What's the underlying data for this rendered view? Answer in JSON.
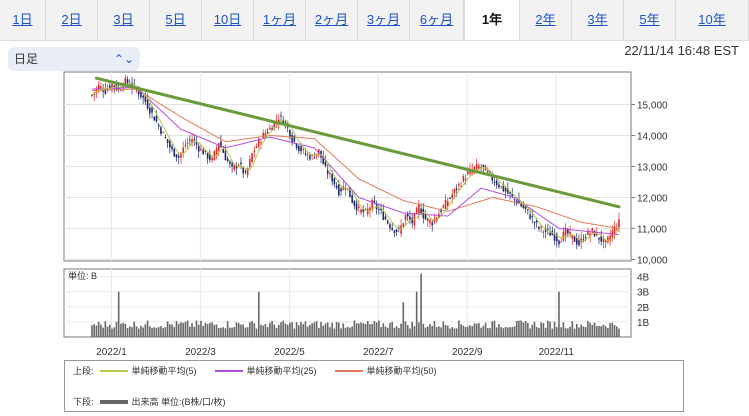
{
  "tabs": [
    "1日",
    "2日",
    "3日",
    "5日",
    "10日",
    "1ヶ月",
    "2ヶ月",
    "3ヶ月",
    "6ヶ月",
    "1年",
    "2年",
    "3年",
    "5年",
    "10年"
  ],
  "active_tab_index": 9,
  "period_select": {
    "value": "日足"
  },
  "timestamp": "22/11/14 16:48 EST",
  "legend": {
    "upper_label": "上段:",
    "lower_label": "下段:",
    "ma": [
      {
        "label": "単純移動平均(5)",
        "color": "#b5c94a"
      },
      {
        "label": "単純移動平均(25)",
        "color": "#b04cd8"
      },
      {
        "label": "単純移動平均(50)",
        "color": "#e07a5a"
      }
    ],
    "volume": {
      "label": "出来高 単位:(B株/口/枚)",
      "color": "#666666"
    }
  },
  "colors": {
    "trendline": "#6a9a3a",
    "candle_up": "#e02828",
    "candle_down": "#1a2a6a"
  },
  "chart_data": {
    "type": "candlestick",
    "price_axis": {
      "ticks": [
        "15,000",
        "14,000",
        "13,000",
        "12,000",
        "11,000",
        "10,000"
      ],
      "range": [
        9950,
        16050
      ]
    },
    "x_ticks": [
      "2022/1",
      "2022/3",
      "2022/5",
      "2022/7",
      "2022/9",
      "2022/11"
    ],
    "close_series": [
      [
        0,
        15300
      ],
      [
        3,
        15600
      ],
      [
        6,
        15450
      ],
      [
        9,
        15650
      ],
      [
        12,
        15500
      ],
      [
        15,
        15750
      ],
      [
        18,
        15600
      ],
      [
        21,
        15400
      ],
      [
        24,
        15100
      ],
      [
        27,
        14700
      ],
      [
        30,
        14300
      ],
      [
        33,
        13900
      ],
      [
        36,
        13500
      ],
      [
        39,
        13300
      ],
      [
        42,
        13700
      ],
      [
        45,
        13900
      ],
      [
        48,
        13600
      ],
      [
        51,
        13400
      ],
      [
        54,
        13200
      ],
      [
        57,
        13800
      ],
      [
        60,
        13300
      ],
      [
        63,
        12900
      ],
      [
        66,
        13100
      ],
      [
        69,
        12700
      ],
      [
        72,
        13400
      ],
      [
        75,
        13800
      ],
      [
        78,
        14100
      ],
      [
        81,
        14300
      ],
      [
        84,
        14600
      ],
      [
        87,
        14400
      ],
      [
        90,
        13900
      ],
      [
        93,
        13600
      ],
      [
        96,
        13400
      ],
      [
        99,
        13300
      ],
      [
        102,
        13500
      ],
      [
        105,
        12900
      ],
      [
        108,
        12600
      ],
      [
        111,
        12200
      ],
      [
        114,
        12400
      ],
      [
        117,
        11900
      ],
      [
        120,
        11600
      ],
      [
        123,
        11500
      ],
      [
        126,
        11800
      ],
      [
        129,
        11600
      ],
      [
        132,
        11300
      ],
      [
        135,
        11000
      ],
      [
        138,
        10900
      ],
      [
        141,
        11400
      ],
      [
        144,
        11200
      ],
      [
        147,
        11700
      ],
      [
        150,
        11300
      ],
      [
        153,
        11200
      ],
      [
        156,
        11500
      ],
      [
        159,
        11800
      ],
      [
        162,
        12100
      ],
      [
        165,
        12400
      ],
      [
        168,
        12700
      ],
      [
        171,
        12900
      ],
      [
        174,
        13000
      ],
      [
        177,
        12900
      ],
      [
        180,
        12600
      ],
      [
        183,
        12400
      ],
      [
        186,
        12200
      ],
      [
        189,
        12000
      ],
      [
        192,
        11800
      ],
      [
        195,
        11600
      ],
      [
        198,
        11300
      ],
      [
        201,
        11000
      ],
      [
        204,
        10900
      ],
      [
        207,
        10800
      ],
      [
        210,
        10600
      ],
      [
        213,
        10900
      ],
      [
        216,
        10700
      ],
      [
        219,
        10500
      ],
      [
        222,
        10800
      ],
      [
        225,
        10900
      ],
      [
        228,
        10700
      ],
      [
        231,
        10500
      ],
      [
        234,
        10900
      ],
      [
        237,
        11200
      ]
    ],
    "ma_levels": {
      "ma25": [
        [
          0,
          15500
        ],
        [
          20,
          15550
        ],
        [
          40,
          14200
        ],
        [
          60,
          13600
        ],
        [
          80,
          13950
        ],
        [
          100,
          13600
        ],
        [
          120,
          12000
        ],
        [
          140,
          11500
        ],
        [
          160,
          11400
        ],
        [
          175,
          12300
        ],
        [
          190,
          12000
        ],
        [
          210,
          11000
        ],
        [
          237,
          10800
        ]
      ],
      "ma50": [
        [
          0,
          15450
        ],
        [
          20,
          15500
        ],
        [
          40,
          14600
        ],
        [
          60,
          13800
        ],
        [
          80,
          14000
        ],
        [
          100,
          13900
        ],
        [
          120,
          12600
        ],
        [
          140,
          11900
        ],
        [
          160,
          11550
        ],
        [
          180,
          12000
        ],
        [
          200,
          11700
        ],
        [
          220,
          11200
        ],
        [
          237,
          11000
        ]
      ]
    },
    "trendline": [
      [
        2,
        15850
      ],
      [
        237,
        11700
      ]
    ],
    "volume_axis": {
      "ticks": [
        "4B",
        "3B",
        "2B",
        "1B"
      ],
      "unit_label": "単位: B"
    },
    "volume_spikes": [
      [
        12,
        3.0
      ],
      [
        75,
        3.0
      ],
      [
        140,
        2.3
      ],
      [
        146,
        3.0
      ],
      [
        148,
        4.2
      ],
      [
        210,
        3.0
      ]
    ]
  }
}
